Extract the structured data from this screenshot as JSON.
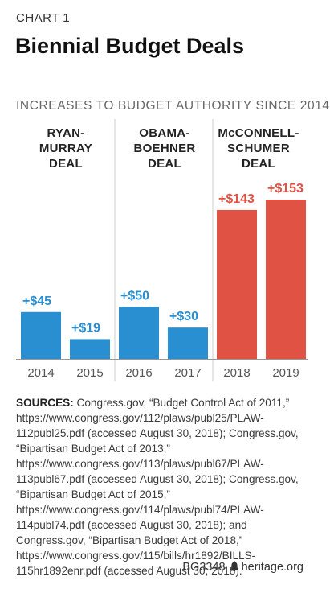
{
  "kicker": "CHART 1",
  "title": "Biennial Budget Deals",
  "subtitle": "INCREASES TO BUDGET AUTHORITY SINCE 2014",
  "colors": {
    "blue": "#2a8fd0",
    "red": "#e05344",
    "grid": "#cccccc",
    "axis": "#999999"
  },
  "chart_data": {
    "type": "bar",
    "title": "",
    "xlabel": "",
    "ylabel": "",
    "ylim": [
      0,
      160
    ],
    "categories": [
      "2014",
      "2015",
      "2016",
      "2017",
      "2018",
      "2019"
    ],
    "values": [
      45,
      19,
      50,
      30,
      143,
      153
    ],
    "data_labels": [
      "+$45",
      "+$19",
      "+$50",
      "+$30",
      "+$143",
      "+$153"
    ],
    "bar_colors": [
      "#2a8fd0",
      "#2a8fd0",
      "#2a8fd0",
      "#2a8fd0",
      "#e05344",
      "#e05344"
    ],
    "groups": [
      {
        "label_lines": [
          "RYAN-",
          "MURRAY",
          "DEAL"
        ],
        "categories": [
          "2014",
          "2015"
        ]
      },
      {
        "label_lines": [
          "OBAMA-",
          "BOEHNER",
          "DEAL"
        ],
        "categories": [
          "2016",
          "2017"
        ]
      },
      {
        "label_lines": [
          "McCONNELL-",
          "SCHUMER",
          "DEAL"
        ],
        "categories": [
          "2018",
          "2019"
        ]
      }
    ]
  },
  "sources": {
    "label": "SOURCES:",
    "text": " Congress.gov, “Budget Control Act of 2011,” https://www.congress.gov/112/plaws/publ25/PLAW-112publ25.pdf (accessed August 30, 2018); Congress.gov, “Bipartisan Budget Act of 2013,” https://www.congress.gov/113/plaws/publ67/PLAW-113publ67.pdf (accessed August 30, 2018); Congress.gov, “Bipartisan Budget Act of 2015,” https://www.congress.gov/114/plaws/publ74/PLAW-114publ74.pdf (accessed August 30, 2018); and Congress.gov, “Bipartisan Budget Act of 2018,” https://www.congress.gov/115/bills/hr1892/BILLS-115hr1892enr.pdf (accessed August 30, 2018)."
  },
  "footer": {
    "code": "BG3348",
    "site": "heritage.org",
    "logo_icon": "liberty-bell-icon"
  }
}
